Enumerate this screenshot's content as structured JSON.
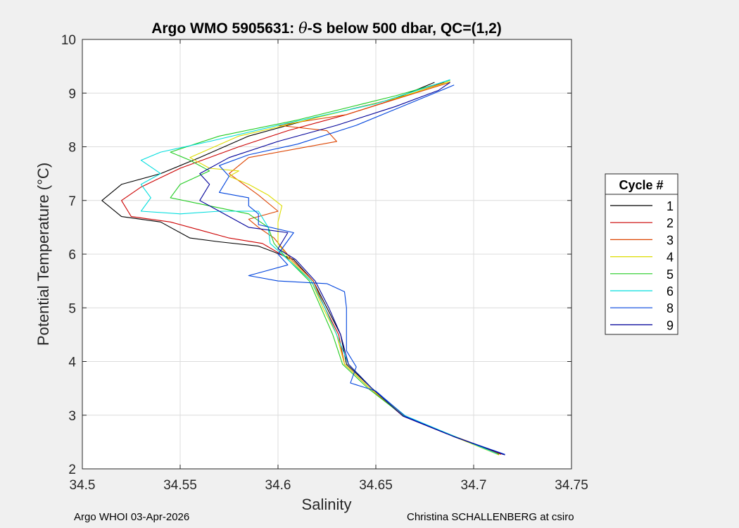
{
  "footer": {
    "left": "Argo WHOI 03-Apr-2026",
    "right": "Christina SCHALLENBERG at csiro"
  },
  "chart_data": {
    "type": "line",
    "title": "Argo WMO 5905631: θ-S below 500 dbar,  QC=(1,2)",
    "title_prefix": "Argo WMO 5905631: ",
    "title_symbol": "θ",
    "title_suffix": "-S below 500 dbar,  QC=(1,2)",
    "xlabel": "Salinity",
    "ylabel": "Potential Temperature (°C)",
    "xlim": [
      34.5,
      34.75
    ],
    "ylim": [
      2,
      10
    ],
    "xticks": [
      34.5,
      34.55,
      34.6,
      34.65,
      34.7,
      34.75
    ],
    "xtick_labels": [
      "34.5",
      "34.55",
      "34.6",
      "34.65",
      "34.7",
      "34.75"
    ],
    "yticks": [
      2,
      3,
      4,
      5,
      6,
      7,
      8,
      9,
      10
    ],
    "ytick_labels": [
      "2",
      "3",
      "4",
      "5",
      "6",
      "7",
      "8",
      "9",
      "10"
    ],
    "grid": true,
    "legend": {
      "title": "Cycle #",
      "placement": "right"
    },
    "series": [
      {
        "name": "1",
        "color": "#000000",
        "points": [
          [
            34.715,
            2.27
          ],
          [
            34.69,
            2.6
          ],
          [
            34.665,
            2.98
          ],
          [
            34.648,
            3.5
          ],
          [
            34.635,
            3.95
          ],
          [
            34.632,
            4.5
          ],
          [
            34.625,
            5.0
          ],
          [
            34.618,
            5.5
          ],
          [
            34.608,
            5.9
          ],
          [
            34.59,
            6.15
          ],
          [
            34.57,
            6.23
          ],
          [
            34.555,
            6.3
          ],
          [
            34.54,
            6.6
          ],
          [
            34.52,
            6.7
          ],
          [
            34.51,
            7.0
          ],
          [
            34.52,
            7.3
          ],
          [
            34.54,
            7.5
          ],
          [
            34.56,
            7.8
          ],
          [
            34.585,
            8.2
          ],
          [
            34.62,
            8.55
          ],
          [
            34.66,
            8.9
          ],
          [
            34.68,
            9.2
          ]
        ]
      },
      {
        "name": "2",
        "color": "#cc0000",
        "points": [
          [
            34.714,
            2.27
          ],
          [
            34.69,
            2.6
          ],
          [
            34.664,
            2.98
          ],
          [
            34.647,
            3.5
          ],
          [
            34.634,
            3.95
          ],
          [
            34.631,
            4.5
          ],
          [
            34.624,
            5.0
          ],
          [
            34.617,
            5.5
          ],
          [
            34.606,
            5.9
          ],
          [
            34.592,
            6.2
          ],
          [
            34.575,
            6.3
          ],
          [
            34.56,
            6.45
          ],
          [
            34.545,
            6.6
          ],
          [
            34.525,
            6.7
          ],
          [
            34.52,
            7.0
          ],
          [
            34.53,
            7.25
          ],
          [
            34.55,
            7.6
          ],
          [
            34.58,
            8.0
          ],
          [
            34.605,
            8.3
          ],
          [
            34.635,
            8.6
          ],
          [
            34.665,
            8.95
          ],
          [
            34.685,
            9.2
          ]
        ]
      },
      {
        "name": "3",
        "color": "#dd4400",
        "points": [
          [
            34.714,
            2.28
          ],
          [
            34.69,
            2.61
          ],
          [
            34.664,
            2.99
          ],
          [
            34.647,
            3.5
          ],
          [
            34.634,
            3.95
          ],
          [
            34.63,
            4.5
          ],
          [
            34.624,
            5.0
          ],
          [
            34.618,
            5.5
          ],
          [
            34.607,
            5.9
          ],
          [
            34.598,
            6.3
          ],
          [
            34.59,
            6.5
          ],
          [
            34.585,
            6.65
          ],
          [
            34.6,
            6.8
          ],
          [
            34.59,
            7.1
          ],
          [
            34.575,
            7.5
          ],
          [
            34.585,
            7.8
          ],
          [
            34.63,
            8.1
          ],
          [
            34.625,
            8.3
          ],
          [
            34.6,
            8.4
          ],
          [
            34.635,
            8.6
          ],
          [
            34.67,
            9.0
          ],
          [
            34.688,
            9.2
          ]
        ]
      },
      {
        "name": "4",
        "color": "#dddd00",
        "points": [
          [
            34.713,
            2.26
          ],
          [
            34.69,
            2.6
          ],
          [
            34.665,
            2.98
          ],
          [
            34.647,
            3.5
          ],
          [
            34.634,
            3.95
          ],
          [
            34.63,
            4.5
          ],
          [
            34.623,
            5.0
          ],
          [
            34.617,
            5.5
          ],
          [
            34.606,
            5.9
          ],
          [
            34.6,
            6.2
          ],
          [
            34.6,
            6.6
          ],
          [
            34.602,
            6.9
          ],
          [
            34.595,
            7.1
          ],
          [
            34.585,
            7.3
          ],
          [
            34.575,
            7.45
          ],
          [
            34.58,
            7.55
          ],
          [
            34.565,
            7.6
          ],
          [
            34.555,
            7.8
          ],
          [
            34.58,
            8.2
          ],
          [
            34.615,
            8.5
          ],
          [
            34.66,
            8.9
          ],
          [
            34.688,
            9.22
          ]
        ]
      },
      {
        "name": "5",
        "color": "#22cc22",
        "points": [
          [
            34.713,
            2.27
          ],
          [
            34.69,
            2.61
          ],
          [
            34.664,
            2.99
          ],
          [
            34.646,
            3.5
          ],
          [
            34.633,
            3.95
          ],
          [
            34.628,
            4.5
          ],
          [
            34.622,
            5.0
          ],
          [
            34.616,
            5.5
          ],
          [
            34.605,
            5.9
          ],
          [
            34.598,
            6.2
          ],
          [
            34.595,
            6.5
          ],
          [
            34.585,
            6.75
          ],
          [
            34.565,
            6.9
          ],
          [
            34.545,
            7.05
          ],
          [
            34.55,
            7.3
          ],
          [
            34.565,
            7.55
          ],
          [
            34.555,
            7.75
          ],
          [
            34.545,
            7.9
          ],
          [
            34.57,
            8.2
          ],
          [
            34.61,
            8.5
          ],
          [
            34.66,
            8.95
          ],
          [
            34.688,
            9.24
          ]
        ]
      },
      {
        "name": "6",
        "color": "#00dddd",
        "points": [
          [
            34.712,
            2.28
          ],
          [
            34.69,
            2.61
          ],
          [
            34.665,
            2.99
          ],
          [
            34.648,
            3.5
          ],
          [
            34.636,
            3.95
          ],
          [
            34.63,
            4.5
          ],
          [
            34.624,
            5.0
          ],
          [
            34.617,
            5.5
          ],
          [
            34.605,
            5.9
          ],
          [
            34.596,
            6.2
          ],
          [
            34.595,
            6.5
          ],
          [
            34.59,
            6.8
          ],
          [
            34.57,
            6.8
          ],
          [
            34.55,
            6.75
          ],
          [
            34.53,
            6.8
          ],
          [
            34.535,
            7.05
          ],
          [
            34.53,
            7.3
          ],
          [
            34.54,
            7.5
          ],
          [
            34.53,
            7.75
          ],
          [
            34.54,
            7.9
          ],
          [
            34.565,
            8.1
          ],
          [
            34.6,
            8.4
          ],
          [
            34.65,
            8.8
          ],
          [
            34.688,
            9.25
          ]
        ]
      },
      {
        "name": "8",
        "color": "#0044dd",
        "points": [
          [
            34.716,
            2.27
          ],
          [
            34.69,
            2.6
          ],
          [
            34.665,
            2.98
          ],
          [
            34.65,
            3.45
          ],
          [
            34.637,
            3.6
          ],
          [
            34.64,
            3.9
          ],
          [
            34.635,
            4.2
          ],
          [
            34.635,
            4.6
          ],
          [
            34.635,
            5.0
          ],
          [
            34.634,
            5.3
          ],
          [
            34.625,
            5.45
          ],
          [
            34.6,
            5.5
          ],
          [
            34.585,
            5.6
          ],
          [
            34.605,
            5.8
          ],
          [
            34.6,
            6.0
          ],
          [
            34.608,
            6.4
          ],
          [
            34.59,
            6.55
          ],
          [
            34.59,
            6.75
          ],
          [
            34.585,
            6.9
          ],
          [
            34.585,
            7.05
          ],
          [
            34.57,
            7.15
          ],
          [
            34.575,
            7.45
          ],
          [
            34.57,
            7.65
          ],
          [
            34.585,
            7.85
          ],
          [
            34.61,
            8.05
          ],
          [
            34.64,
            8.4
          ],
          [
            34.66,
            8.7
          ],
          [
            34.68,
            9.0
          ],
          [
            34.69,
            9.15
          ]
        ]
      },
      {
        "name": "9",
        "color": "#000099",
        "points": [
          [
            34.716,
            2.26
          ],
          [
            34.69,
            2.6
          ],
          [
            34.664,
            2.98
          ],
          [
            34.648,
            3.5
          ],
          [
            34.636,
            3.95
          ],
          [
            34.632,
            4.5
          ],
          [
            34.626,
            5.0
          ],
          [
            34.619,
            5.5
          ],
          [
            34.609,
            5.9
          ],
          [
            34.6,
            6.1
          ],
          [
            34.605,
            6.4
          ],
          [
            34.585,
            6.5
          ],
          [
            34.575,
            6.7
          ],
          [
            34.565,
            6.9
          ],
          [
            34.56,
            7.0
          ],
          [
            34.565,
            7.3
          ],
          [
            34.56,
            7.5
          ],
          [
            34.575,
            7.8
          ],
          [
            34.6,
            8.1
          ],
          [
            34.63,
            8.4
          ],
          [
            34.66,
            8.75
          ],
          [
            34.682,
            9.05
          ],
          [
            34.688,
            9.2
          ]
        ]
      }
    ]
  }
}
